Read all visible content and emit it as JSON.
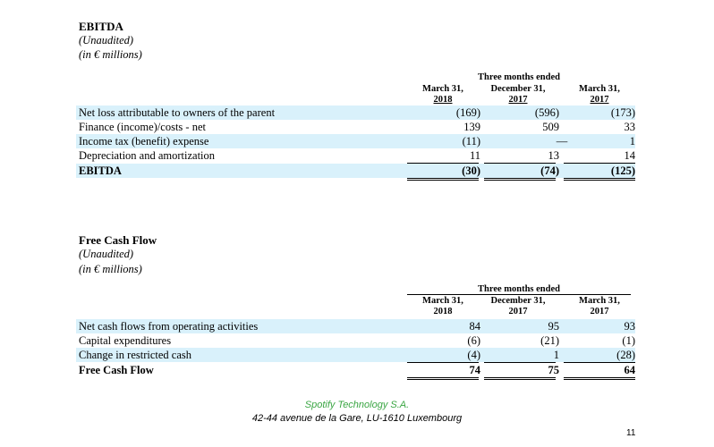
{
  "ebitda": {
    "title": "EBITDA",
    "unaudited": "(Unaudited)",
    "units": "(in € millions)",
    "span_header": "Three months ended",
    "columns": [
      {
        "line1": "March 31,",
        "line2": "2018"
      },
      {
        "line1": "December 31,",
        "line2": "2017"
      },
      {
        "line1": "March 31,",
        "line2": "2017"
      }
    ],
    "rows": [
      {
        "label": "Net loss attributable to owners of the parent",
        "values": [
          "(169)",
          "(596)",
          "(173)"
        ]
      },
      {
        "label": "Finance (income)/costs - net",
        "values": [
          "139",
          "509",
          "33"
        ]
      },
      {
        "label": "Income tax (benefit) expense",
        "values": [
          "(11)",
          "—",
          "1"
        ]
      },
      {
        "label": "Depreciation and amortization",
        "values": [
          "11",
          "13",
          "14"
        ]
      },
      {
        "label": "EBITDA",
        "values": [
          "(30)",
          "(74)",
          "(125)"
        ]
      }
    ]
  },
  "fcf": {
    "title": "Free Cash Flow",
    "unaudited": "(Unaudited)",
    "units": "(in € millions)",
    "span_header": "Three months ended",
    "columns": [
      {
        "line1": "March 31,",
        "line2": "2018"
      },
      {
        "line1": "December 31,",
        "line2": "2017"
      },
      {
        "line1": "March 31,",
        "line2": "2017"
      }
    ],
    "rows": [
      {
        "label": "Net cash flows from operating activities",
        "values": [
          "84",
          "95",
          "93"
        ]
      },
      {
        "label": "Capital expenditures",
        "values": [
          "(6)",
          "(21)",
          "(1)"
        ]
      },
      {
        "label": "Change in restricted cash",
        "values": [
          "(4)",
          "1",
          "(28)"
        ]
      },
      {
        "label": "Free Cash Flow",
        "values": [
          "74",
          "75",
          "64"
        ]
      }
    ]
  },
  "footer": {
    "company": "Spotify Technology S.A.",
    "address": "42-44 avenue de la Gare, LU-1610 Luxembourg",
    "page_number": "11"
  },
  "colors": {
    "row_shade": "#d9f1fb",
    "company_green": "#3aa643"
  }
}
